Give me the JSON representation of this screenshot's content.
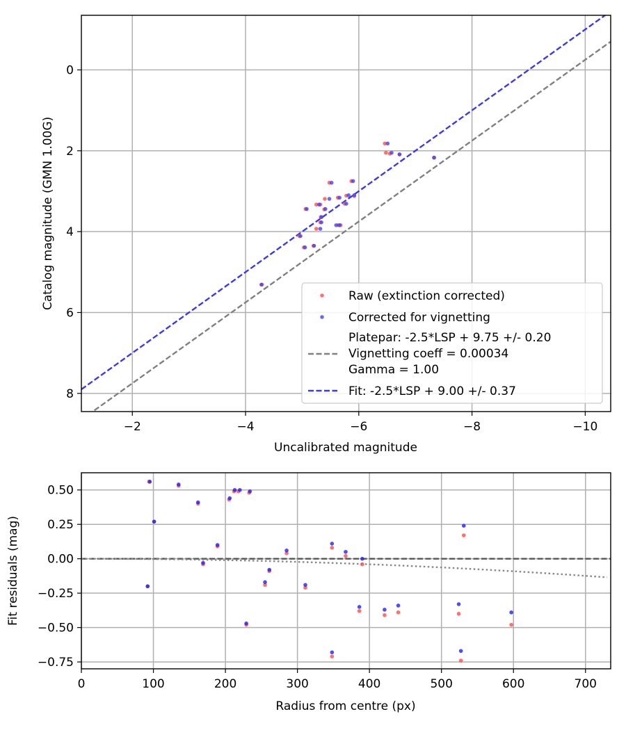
{
  "chart_data": [
    {
      "type": "scatter",
      "xlabel": "Uncalibrated magnitude",
      "ylabel": "Catalog magnitude (GMN 1.00G)",
      "xlim": [
        -1.1,
        -10.45
      ],
      "ylim": [
        8.45,
        -1.35
      ],
      "x_ticks": [
        -2,
        -4,
        -6,
        -8,
        -10
      ],
      "x_tick_labels": [
        "−2",
        "−4",
        "−6",
        "−8",
        "−10"
      ],
      "y_ticks": [
        0,
        2,
        4,
        6,
        8
      ],
      "y_tick_labels": [
        "0",
        "2",
        "4",
        "6",
        "8"
      ],
      "grid": true,
      "legend_position": "bottom-right",
      "series": [
        {
          "name": "Raw (extinction corrected)",
          "kind": "scatter",
          "color": "#ff4d4d",
          "points": [
            [
              -6.46,
              1.82
            ],
            [
              -6.48,
              2.05
            ],
            [
              -6.55,
              2.07
            ],
            [
              -6.72,
              2.09
            ],
            [
              -7.33,
              2.17
            ],
            [
              -5.48,
              2.79
            ],
            [
              -5.87,
              2.75
            ],
            [
              -5.92,
              3.12
            ],
            [
              -5.78,
              3.11
            ],
            [
              -5.75,
              3.31
            ],
            [
              -5.63,
              3.16
            ],
            [
              -5.4,
              3.19
            ],
            [
              -5.25,
              3.33
            ],
            [
              -5.32,
              3.33
            ],
            [
              -5.06,
              3.44
            ],
            [
              -5.39,
              3.45
            ],
            [
              -5.33,
              3.64
            ],
            [
              -5.32,
              3.77
            ],
            [
              -5.64,
              3.84
            ],
            [
              -5.68,
              3.84
            ],
            [
              -5.25,
              3.93
            ],
            [
              -4.95,
              4.11
            ],
            [
              -5.2,
              4.35
            ],
            [
              -5.03,
              4.39
            ],
            [
              -4.29,
              5.31
            ]
          ]
        },
        {
          "name": "Corrected for vignetting",
          "kind": "scatter",
          "color": "#4444ee",
          "points": [
            [
              -6.51,
              1.82
            ],
            [
              -6.58,
              2.05
            ],
            [
              -6.72,
              2.09
            ],
            [
              -7.33,
              2.17
            ],
            [
              -5.52,
              2.79
            ],
            [
              -5.9,
              2.75
            ],
            [
              -5.92,
              3.1
            ],
            [
              -5.82,
              3.1
            ],
            [
              -5.78,
              3.31
            ],
            [
              -5.66,
              3.16
            ],
            [
              -5.48,
              3.19
            ],
            [
              -5.3,
              3.33
            ],
            [
              -5.08,
              3.44
            ],
            [
              -5.41,
              3.44
            ],
            [
              -5.34,
              3.64
            ],
            [
              -5.34,
              3.77
            ],
            [
              -5.6,
              3.84
            ],
            [
              -5.66,
              3.84
            ],
            [
              -5.32,
              3.93
            ],
            [
              -4.97,
              4.11
            ],
            [
              -5.21,
              4.35
            ],
            [
              -5.05,
              4.39
            ],
            [
              -4.28,
              5.31
            ]
          ]
        },
        {
          "name": "Platepar: -2.5*LSP + 9.75 +/- 0.20\nVignetting coeff = 0.00034\nGamma = 1.00",
          "legend_lines": [
            "Platepar: -2.5*LSP + 9.75 +/- 0.20",
            "Vignetting coeff = 0.00034",
            "Gamma = 1.00"
          ],
          "kind": "line",
          "style": "dashed",
          "color": "#808080",
          "intercept": 9.75
        },
        {
          "name": "Fit: -2.5*LSP + 9.00 +/- 0.37",
          "legend_lines": [
            "Fit: -2.5*LSP + 9.00 +/- 0.37"
          ],
          "kind": "line",
          "style": "dashed",
          "color": "#3a3ae8",
          "intercept": 9.0
        }
      ]
    },
    {
      "type": "scatter",
      "xlabel": "Radius from centre (px)",
      "ylabel": "Fit residuals (mag)",
      "xlim": [
        0,
        735
      ],
      "ylim": [
        -0.8,
        0.625
      ],
      "x_ticks": [
        0,
        100,
        200,
        300,
        400,
        500,
        600,
        700
      ],
      "x_tick_labels": [
        "0",
        "100",
        "200",
        "300",
        "400",
        "500",
        "600",
        "700"
      ],
      "y_ticks": [
        0.5,
        0.25,
        0.0,
        -0.25,
        -0.5,
        -0.75
      ],
      "y_tick_labels": [
        "0.50",
        "0.25",
        "0.00",
        "−0.25",
        "−0.50",
        "−0.75"
      ],
      "grid": true,
      "series": [
        {
          "name": "Raw residuals",
          "kind": "scatter",
          "color": "#ff4d4d",
          "points": [
            [
              94,
              0.56
            ],
            [
              135,
              0.53
            ],
            [
              162,
              0.4
            ],
            [
              101,
              0.27
            ],
            [
              212,
              0.49
            ],
            [
              218,
              0.49
            ],
            [
              205,
              0.43
            ],
            [
              233,
              0.48
            ],
            [
              189,
              0.09
            ],
            [
              169,
              -0.04
            ],
            [
              285,
              0.04
            ],
            [
              261,
              -0.09
            ],
            [
              255,
              -0.19
            ],
            [
              311,
              -0.21
            ],
            [
              229,
              -0.48
            ],
            [
              92,
              -0.2
            ],
            [
              348,
              0.08
            ],
            [
              367,
              0.02
            ],
            [
              390,
              -0.04
            ],
            [
              386,
              -0.38
            ],
            [
              421,
              -0.41
            ],
            [
              440,
              -0.39
            ],
            [
              348,
              -0.71
            ],
            [
              531,
              0.17
            ],
            [
              524,
              -0.4
            ],
            [
              527,
              -0.74
            ],
            [
              597,
              -0.48
            ]
          ]
        },
        {
          "name": "Corrected residuals",
          "kind": "scatter",
          "color": "#2222ee",
          "points": [
            [
              95,
              0.56
            ],
            [
              135,
              0.54
            ],
            [
              162,
              0.41
            ],
            [
              101,
              0.27
            ],
            [
              213,
              0.5
            ],
            [
              220,
              0.5
            ],
            [
              206,
              0.44
            ],
            [
              234,
              0.49
            ],
            [
              189,
              0.1
            ],
            [
              169,
              -0.03
            ],
            [
              285,
              0.06
            ],
            [
              261,
              -0.08
            ],
            [
              255,
              -0.17
            ],
            [
              311,
              -0.19
            ],
            [
              229,
              -0.47
            ],
            [
              92,
              -0.2
            ],
            [
              348,
              0.11
            ],
            [
              367,
              0.05
            ],
            [
              390,
              0.0
            ],
            [
              386,
              -0.35
            ],
            [
              421,
              -0.37
            ],
            [
              440,
              -0.34
            ],
            [
              348,
              -0.68
            ],
            [
              531,
              0.24
            ],
            [
              524,
              -0.33
            ],
            [
              527,
              -0.67
            ],
            [
              597,
              -0.39
            ]
          ]
        },
        {
          "name": "Zero line",
          "kind": "line",
          "style": "dashed",
          "color": "#555555",
          "points": [
            [
              0,
              0
            ],
            [
              735,
              0
            ]
          ]
        },
        {
          "name": "Vignetting curve",
          "kind": "line",
          "style": "dotted",
          "color": "#888888",
          "coeff": 0.00034,
          "gamma": 1.0
        }
      ]
    }
  ]
}
